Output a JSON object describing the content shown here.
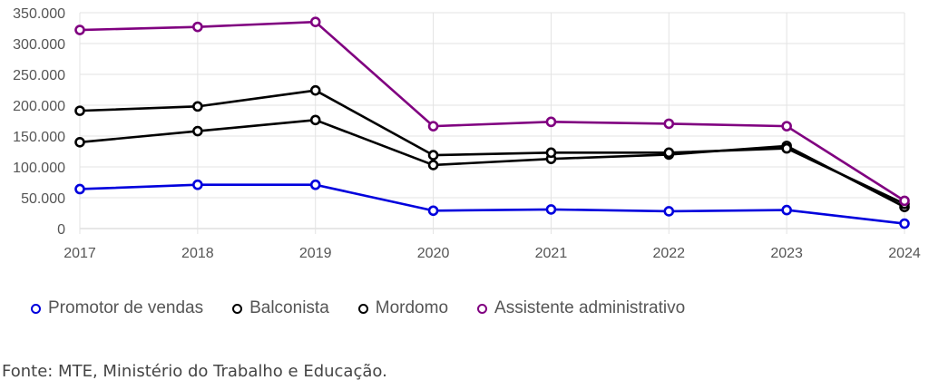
{
  "chart_data": {
    "type": "line",
    "title": "",
    "xlabel": "",
    "ylabel": "",
    "categories": [
      "2017",
      "2018",
      "2019",
      "2020",
      "2021",
      "2022",
      "2023",
      "2024"
    ],
    "y_ticks": [
      {
        "value": 0,
        "label": "0"
      },
      {
        "value": 50000,
        "label": "50.000"
      },
      {
        "value": 100000,
        "label": "100.000"
      },
      {
        "value": 150000,
        "label": "150.000"
      },
      {
        "value": 200000,
        "label": "200.000"
      },
      {
        "value": 250000,
        "label": "250.000"
      },
      {
        "value": 300000,
        "label": "300.000"
      },
      {
        "value": 350000,
        "label": "350.000"
      }
    ],
    "ylim": [
      0,
      350000
    ],
    "grid": true,
    "legend_position": "bottom-left",
    "series": [
      {
        "name": "Promotor de vendas",
        "color": "#0000dd",
        "values": [
          64000,
          71000,
          71000,
          29000,
          31000,
          28000,
          30000,
          8000
        ]
      },
      {
        "name": "Balconista",
        "color": "#000000",
        "values": [
          140000,
          158000,
          176000,
          103000,
          113000,
          120000,
          134000,
          35000
        ]
      },
      {
        "name": "Mordomo",
        "color": "#000000",
        "values": [
          191000,
          198000,
          224000,
          119000,
          123000,
          123000,
          130000,
          40000
        ]
      },
      {
        "name": "Assistente administrativo",
        "color": "#800080",
        "values": [
          322000,
          327000,
          335000,
          166000,
          173000,
          170000,
          166000,
          45000
        ]
      }
    ]
  },
  "source_note": "Fonte: MTE, Ministério do Trabalho e Educação."
}
